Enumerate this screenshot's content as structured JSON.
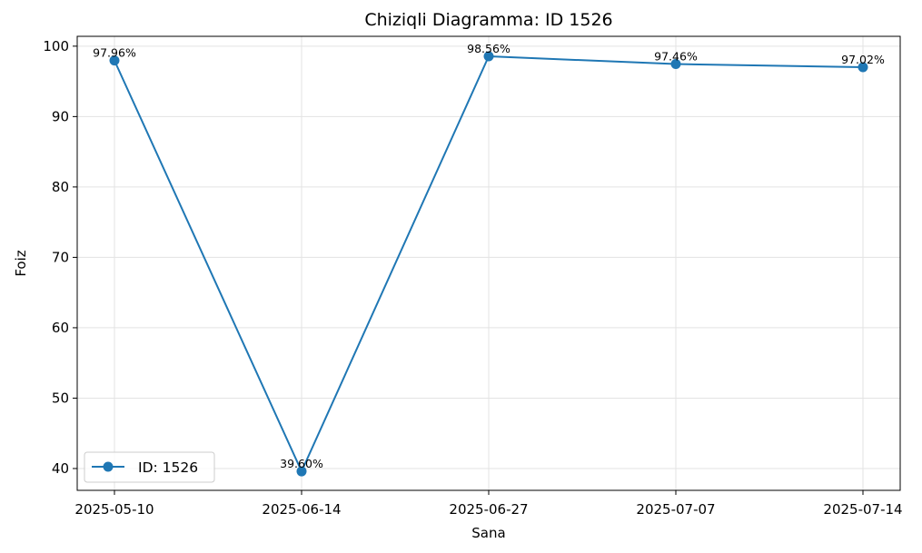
{
  "chart_data": {
    "type": "line",
    "title": "Chiziqli Diagramma: ID 1526",
    "xlabel": "Sana",
    "ylabel": "Foiz",
    "categories": [
      "2025-05-10",
      "2025-06-14",
      "2025-06-27",
      "2025-07-07",
      "2025-07-14"
    ],
    "series": [
      {
        "name": "ID: 1526",
        "values": [
          97.96,
          39.6,
          98.56,
          97.46,
          97.02
        ],
        "labels": [
          "97.96%",
          "39.60%",
          "98.56%",
          "97.46%",
          "97.02%"
        ],
        "color": "#1f77b4",
        "marker": "circle"
      }
    ],
    "ylim": [
      36.9,
      101.4
    ],
    "yticks": [
      40,
      50,
      60,
      70,
      80,
      90,
      100
    ],
    "grid": true,
    "legend_position": "lower-left"
  }
}
